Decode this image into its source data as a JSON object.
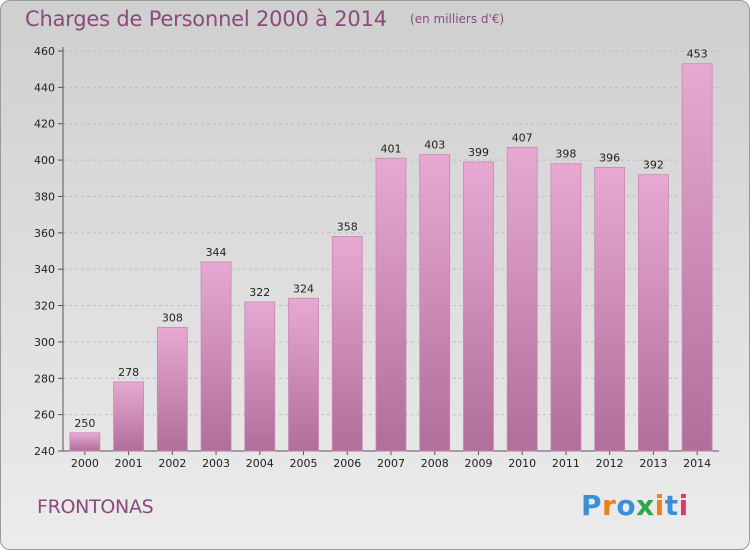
{
  "header": {
    "title": "Charges de Personnel 2000 à 2014",
    "subtitle": "(en milliers d'€)"
  },
  "footer": {
    "commune": "FRONTONAS",
    "logo_text": "Proxiti",
    "logo_colors": [
      "#3a8fd8",
      "#ef7f1a",
      "#3a8fd8",
      "#2aa84a",
      "#ef7f1a",
      "#3a8fd8",
      "#d83a6a"
    ]
  },
  "colors": {
    "bar_top": "#e7a9d2",
    "bar_bottom": "#b06e9a",
    "bar_edge": "#c888b4",
    "text": "#8a4a7a",
    "grid": "#bfbfbf"
  },
  "chart_data": {
    "type": "bar",
    "title": "Charges de Personnel 2000 à 2014",
    "subtitle": "(en milliers d'€)",
    "categories": [
      "2000",
      "2001",
      "2002",
      "2003",
      "2004",
      "2005",
      "2006",
      "2007",
      "2008",
      "2009",
      "2010",
      "2011",
      "2012",
      "2013",
      "2014"
    ],
    "values": [
      250,
      278,
      308,
      344,
      322,
      324,
      358,
      401,
      403,
      399,
      407,
      398,
      396,
      392,
      453
    ],
    "ylim": [
      240,
      460
    ],
    "yticks": [
      240,
      260,
      280,
      300,
      320,
      340,
      360,
      380,
      400,
      420,
      440,
      460
    ],
    "grid": true,
    "xlabel": "",
    "ylabel": ""
  }
}
